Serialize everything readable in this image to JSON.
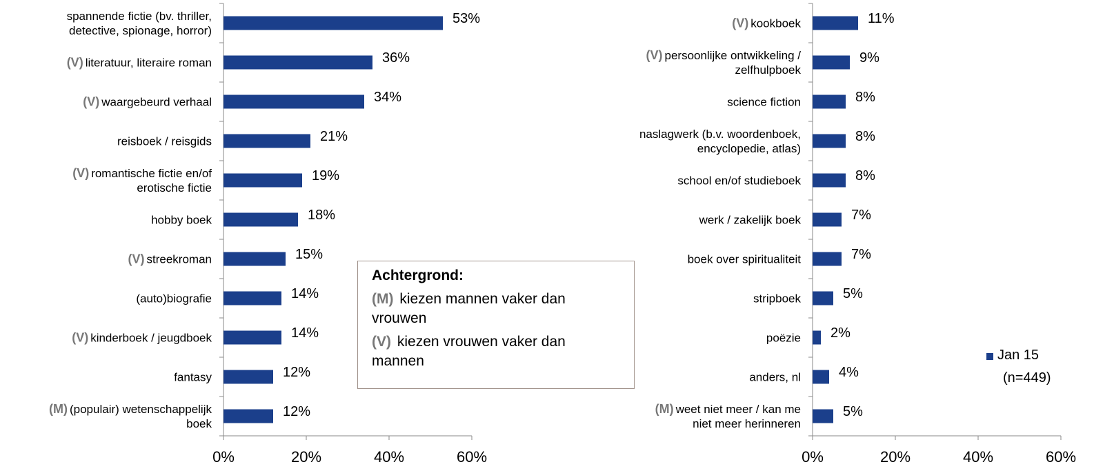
{
  "chart_data": [
    {
      "type": "bar",
      "orientation": "horizontal",
      "categories": [
        "spannende fictie (bv. thriller,\ndetective, spionage, horror)",
        "literatuur, literaire roman",
        "waargebeurd verhaal",
        "reisboek / reisgids",
        "romantische fictie en/of\nerotische fictie",
        "hobby boek",
        "streekroman",
        "(auto)biografie",
        "kinderboek / jeugdboek",
        "fantasy",
        "(populair) wetenschappelijk\nboek"
      ],
      "markers": [
        null,
        "(V)",
        "(V)",
        null,
        "(V)",
        null,
        "(V)",
        null,
        "(V)",
        null,
        "(M)"
      ],
      "series": [
        {
          "name": "Jan 15",
          "color": "#1b3f8b",
          "values": [
            53,
            36,
            34,
            21,
            19,
            18,
            15,
            14,
            14,
            12,
            12
          ],
          "value_labels": [
            "53%",
            "36%",
            "34%",
            "21%",
            "19%",
            "18%",
            "15%",
            "14%",
            "14%",
            "12%",
            "12%"
          ]
        }
      ],
      "xlim": [
        0,
        60
      ],
      "xticks": [
        {
          "value": 0,
          "label": "0%"
        },
        {
          "value": 20,
          "label": "20%"
        },
        {
          "value": 40,
          "label": "40%"
        },
        {
          "value": 60,
          "label": "60%"
        }
      ],
      "annotation": {
        "title": "Achtergrond:",
        "items": [
          {
            "marker": "(M)",
            "text": "kiezen mannen vaker dan vrouwen"
          },
          {
            "marker": "(V)",
            "text": "kiezen vrouwen vaker dan mannen"
          }
        ]
      }
    },
    {
      "type": "bar",
      "orientation": "horizontal",
      "categories": [
        "kookboek",
        "persoonlijke ontwikkeling /\nzelfhulpboek",
        "science fiction",
        "naslagwerk (b.v. woordenboek,\nencyclopedie, atlas)",
        "school en/of studieboek",
        "werk / zakelijk boek",
        "boek over spiritualiteit",
        "stripboek",
        "poëzie",
        "anders, nl",
        "weet niet meer / kan me\nniet meer herinneren"
      ],
      "markers": [
        "(V)",
        "(V)",
        null,
        null,
        null,
        null,
        null,
        null,
        null,
        null,
        "(M)"
      ],
      "series": [
        {
          "name": "Jan 15",
          "color": "#1b3f8b",
          "values": [
            11,
            9,
            8,
            8,
            8,
            7,
            7,
            5,
            2,
            4,
            5
          ],
          "value_labels": [
            "11%",
            "9%",
            "8%",
            "8%",
            "8%",
            "7%",
            "7%",
            "5%",
            "2%",
            "4%",
            "5%"
          ]
        }
      ],
      "xlim": [
        0,
        60
      ],
      "xticks": [
        {
          "value": 0,
          "label": "0%"
        },
        {
          "value": 20,
          "label": "20%"
        },
        {
          "value": 40,
          "label": "40%"
        },
        {
          "value": 60,
          "label": "60%"
        }
      ],
      "legend": {
        "position": "lower right",
        "note": "(n=449)"
      }
    }
  ]
}
